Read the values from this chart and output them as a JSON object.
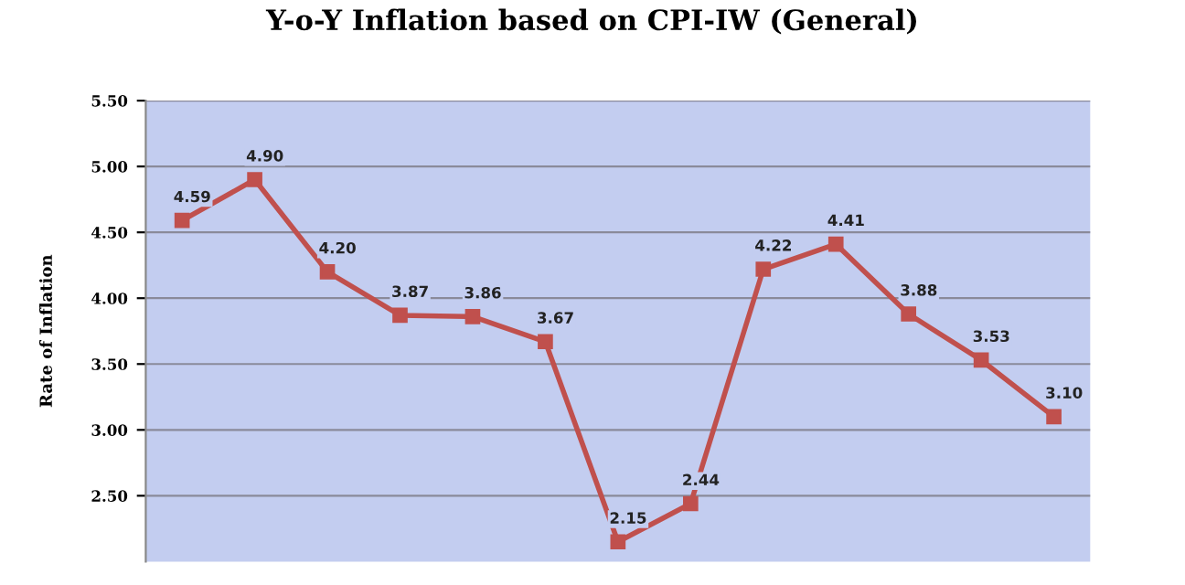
{
  "chart_data": {
    "type": "line",
    "title": "Y-o-Y Inflation based on CPI-IW (General)",
    "ylabel": "Rate of Inflation",
    "categories": [
      null,
      null,
      null,
      null,
      null,
      null,
      null,
      null,
      null,
      null,
      null,
      null,
      null
    ],
    "series": [
      {
        "color": "#c0504d",
        "values": [
          4.59,
          4.9,
          4.2,
          3.87,
          3.86,
          3.67,
          2.15,
          2.44,
          4.22,
          4.41,
          3.88,
          3.53,
          3.1
        ],
        "value_labels": [
          "4.59",
          "4.90",
          "4.20",
          "3.87",
          "3.86",
          "3.67",
          "2.15",
          "2.44",
          "4.22",
          "4.41",
          "3.88",
          "3.53",
          "3.10"
        ]
      }
    ],
    "ylim": [
      2.0,
      5.5
    ],
    "yticks": [
      {
        "value": 2.5,
        "label": "2.50"
      },
      {
        "value": 3.0,
        "label": "3.00"
      },
      {
        "value": 3.5,
        "label": "3.50"
      },
      {
        "value": 4.0,
        "label": "4.00"
      },
      {
        "value": 4.5,
        "label": "4.50"
      },
      {
        "value": 5.0,
        "label": "5.00"
      },
      {
        "value": 5.5,
        "label": "5.50"
      }
    ],
    "grid": "y",
    "marker": "square",
    "line_style": "solid"
  }
}
